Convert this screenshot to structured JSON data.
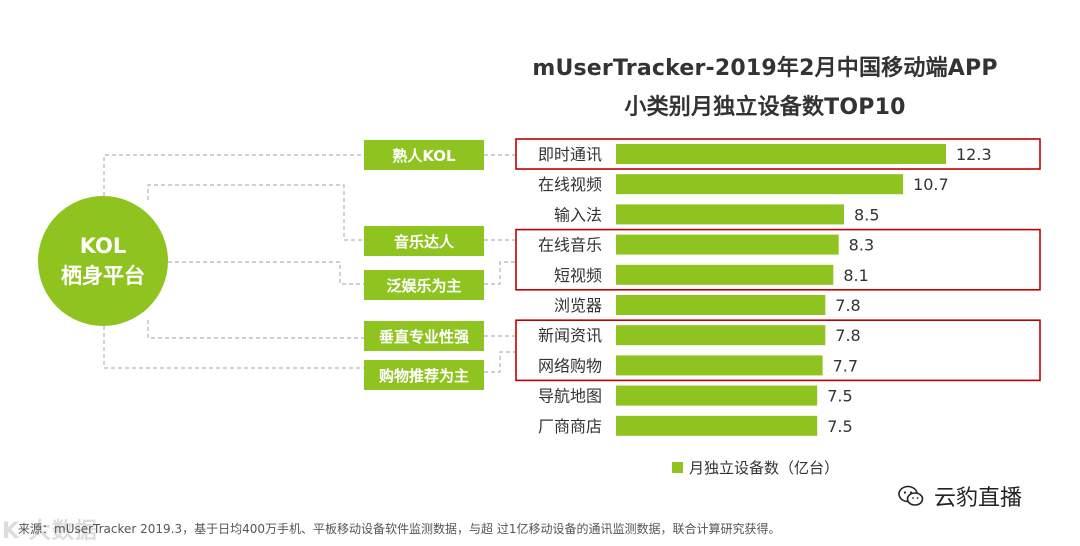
{
  "chart_data": {
    "type": "bar",
    "orientation": "horizontal",
    "title_line1": "mUserTracker-2019年2月中国移动端APP",
    "title_line2": "小类别月独立设备数TOP10",
    "categories": [
      "即时通讯",
      "在线视频",
      "输入法",
      "在线音乐",
      "短视频",
      "浏览器",
      "新闻资讯",
      "网络购物",
      "导航地图",
      "厂商商店"
    ],
    "series": [
      {
        "name": "月独立设备数（亿台）",
        "values": [
          12.3,
          10.7,
          8.5,
          8.3,
          8.1,
          7.8,
          7.8,
          7.7,
          7.5,
          7.5
        ]
      }
    ],
    "value_labels": [
      "12.3",
      "10.7",
      "8.5",
      "8.3",
      "8.1",
      "7.8",
      "7.8",
      "7.7",
      "7.5",
      "7.5"
    ],
    "xlim": [
      0,
      12.3
    ],
    "legend": "bottom",
    "grid": false,
    "bar_color": "#8fc31f",
    "highlight_color": "#c00000",
    "highlight_groups": [
      [
        "即时通讯"
      ],
      [
        "在线音乐",
        "短视频"
      ],
      [
        "新闻资讯",
        "网络购物"
      ]
    ]
  },
  "kol": {
    "line1": "KOL",
    "line2": "栖身平台",
    "tags": [
      "熟人KOL",
      "音乐达人",
      "泛娱乐为主",
      "垂直专业性强",
      "购物推荐为主"
    ]
  },
  "footer": "来源：mUserTracker 2019.3，基于日均400万手机、平板移动设备软件监测数据，与超 过1亿移动设备的通讯监测数据，联合计算研究获得。",
  "brand": "云豹直播",
  "watermark": "K 大数据"
}
